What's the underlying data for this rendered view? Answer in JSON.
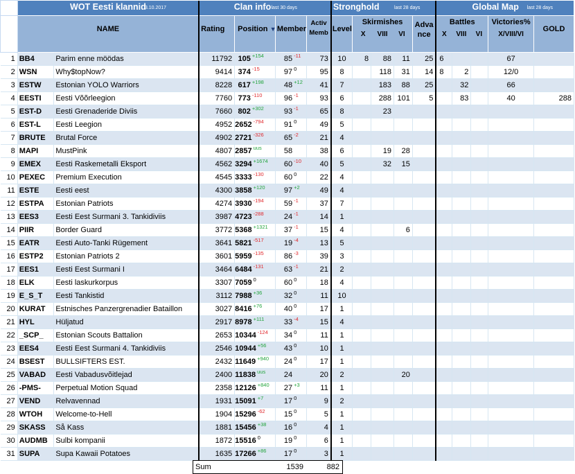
{
  "header": {
    "title": "WOT Eesti klannid",
    "date": "3.10.2017",
    "clan_info": "Clan info",
    "clan_info_note": "last 30 days",
    "stronghold": "Stronghold",
    "stronghold_note": "last 28 days",
    "global_map": "Global Map",
    "global_map_note": "last 28 days",
    "col_name": "NAME",
    "col_rating": "Rating",
    "col_position": "Position",
    "col_position_arrow": "▼",
    "col_members": "Members",
    "col_activ": "Activ",
    "col_activ2": "Memb",
    "col_level": "Level",
    "col_skirmishes": "Skirmishes",
    "col_sk_x": "X",
    "col_sk_viii": "VIII",
    "col_sk_vi": "VI",
    "col_advance": "Adva",
    "col_advance2": "nce",
    "col_battles": "Battles",
    "col_gm_x": "X",
    "col_gm_viii": "VIII",
    "col_gm_vi": "VI",
    "col_victories": "Victories%",
    "col_victories2": "X/VIII/VI",
    "col_gold": "GOLD"
  },
  "rows": [
    {
      "n": "1",
      "tag": "BB4",
      "name": "Parim enne möödas",
      "rating": "11792",
      "pos": "105",
      "pos_chg": "+154",
      "mem": "85",
      "mem_chg": "-11",
      "activ": "73",
      "level": "10",
      "skx": "8",
      "skviii": "88",
      "skvi": "11",
      "adv": "25",
      "gbx": "6",
      "gbviii": "",
      "gbvi": "",
      "vic": "67",
      "gold": ""
    },
    {
      "n": "2",
      "tag": "WSN",
      "name": "Why$topNow?",
      "rating": "9414",
      "pos": "374",
      "pos_chg": "-15",
      "mem": "97",
      "mem_chg": "0",
      "activ": "95",
      "level": "8",
      "skx": "",
      "skviii": "118",
      "skvi": "31",
      "adv": "14",
      "gbx": "8",
      "gbviii": "2",
      "gbvi": "",
      "vic": "12/0",
      "gold": ""
    },
    {
      "n": "3",
      "tag": "ESTW",
      "name": "Estonian YOLO Warriors",
      "rating": "8228",
      "pos": "617",
      "pos_chg": "+198",
      "mem": "48",
      "mem_chg": "+12",
      "activ": "41",
      "level": "7",
      "skx": "",
      "skviii": "183",
      "skvi": "88",
      "adv": "25",
      "gbx": "",
      "gbviii": "32",
      "gbvi": "",
      "vic": "66",
      "gold": ""
    },
    {
      "n": "4",
      "tag": "EESTI",
      "name": "Eesti Võõrleegion",
      "rating": "7760",
      "pos": "773",
      "pos_chg": "-110",
      "mem": "96",
      "mem_chg": "-1",
      "activ": "93",
      "level": "6",
      "skx": "",
      "skviii": "288",
      "skvi": "101",
      "adv": "5",
      "gbx": "",
      "gbviii": "83",
      "gbvi": "",
      "vic": "40",
      "gold": "288"
    },
    {
      "n": "5",
      "tag": "EST-D",
      "name": "Eesti Grenaderide Diviis",
      "rating": "7660",
      "pos": "802",
      "pos_chg": "+302",
      "mem": "93",
      "mem_chg": "-1",
      "activ": "65",
      "level": "8",
      "skx": "",
      "skviii": "23",
      "skvi": "",
      "adv": "",
      "gbx": "",
      "gbviii": "",
      "gbvi": "",
      "vic": "",
      "gold": ""
    },
    {
      "n": "6",
      "tag": "EST-L",
      "name": "Eesti Leegion",
      "rating": "4952",
      "pos": "2652",
      "pos_chg": "-794",
      "mem": "91",
      "mem_chg": "0",
      "activ": "49",
      "level": "5",
      "skx": "",
      "skviii": "",
      "skvi": "",
      "adv": "",
      "gbx": "",
      "gbviii": "",
      "gbvi": "",
      "vic": "",
      "gold": ""
    },
    {
      "n": "7",
      "tag": "BRUTE",
      "name": "Brutal Force",
      "rating": "4902",
      "pos": "2721",
      "pos_chg": "-326",
      "mem": "65",
      "mem_chg": "-2",
      "activ": "21",
      "level": "4",
      "skx": "",
      "skviii": "",
      "skvi": "",
      "adv": "",
      "gbx": "",
      "gbviii": "",
      "gbvi": "",
      "vic": "",
      "gold": ""
    },
    {
      "n": "8",
      "tag": "MAPI",
      "name": "MustPink",
      "rating": "4807",
      "pos": "2857",
      "pos_chg": "uus",
      "mem": "58",
      "mem_chg": "",
      "activ": "38",
      "level": "6",
      "skx": "",
      "skviii": "19",
      "skvi": "28",
      "adv": "",
      "gbx": "",
      "gbviii": "",
      "gbvi": "",
      "vic": "",
      "gold": ""
    },
    {
      "n": "9",
      "tag": "EMEX",
      "name": "Eesti Raskemetalli Eksport",
      "rating": "4562",
      "pos": "3294",
      "pos_chg": "+1674",
      "mem": "60",
      "mem_chg": "-10",
      "activ": "40",
      "level": "5",
      "skx": "",
      "skviii": "32",
      "skvi": "15",
      "adv": "",
      "gbx": "",
      "gbviii": "",
      "gbvi": "",
      "vic": "",
      "gold": ""
    },
    {
      "n": "10",
      "tag": "PEXEC",
      "name": "Premium Execution",
      "rating": "4545",
      "pos": "3333",
      "pos_chg": "-130",
      "mem": "60",
      "mem_chg": "0",
      "activ": "22",
      "level": "4",
      "skx": "",
      "skviii": "",
      "skvi": "",
      "adv": "",
      "gbx": "",
      "gbviii": "",
      "gbvi": "",
      "vic": "",
      "gold": ""
    },
    {
      "n": "11",
      "tag": "ESTE",
      "name": "Eesti eest",
      "rating": "4300",
      "pos": "3858",
      "pos_chg": "+120",
      "mem": "97",
      "mem_chg": "+2",
      "activ": "49",
      "level": "4",
      "skx": "",
      "skviii": "",
      "skvi": "",
      "adv": "",
      "gbx": "",
      "gbviii": "",
      "gbvi": "",
      "vic": "",
      "gold": ""
    },
    {
      "n": "12",
      "tag": "ESTPA",
      "name": "Estonian Patriots",
      "rating": "4274",
      "pos": "3930",
      "pos_chg": "-194",
      "mem": "59",
      "mem_chg": "-1",
      "activ": "37",
      "level": "7",
      "skx": "",
      "skviii": "",
      "skvi": "",
      "adv": "",
      "gbx": "",
      "gbviii": "",
      "gbvi": "",
      "vic": "",
      "gold": ""
    },
    {
      "n": "13",
      "tag": "EES3",
      "name": "Eesti Eest Surmani 3. Tankidiviis",
      "rating": "3987",
      "pos": "4723",
      "pos_chg": "-288",
      "mem": "24",
      "mem_chg": "-1",
      "activ": "14",
      "level": "1",
      "skx": "",
      "skviii": "",
      "skvi": "",
      "adv": "",
      "gbx": "",
      "gbviii": "",
      "gbvi": "",
      "vic": "",
      "gold": ""
    },
    {
      "n": "14",
      "tag": "PIIR",
      "name": "Border Guard",
      "rating": "3772",
      "pos": "5368",
      "pos_chg": "+1321",
      "mem": "37",
      "mem_chg": "-1",
      "activ": "15",
      "level": "4",
      "skx": "",
      "skviii": "",
      "skvi": "6",
      "adv": "",
      "gbx": "",
      "gbviii": "",
      "gbvi": "",
      "vic": "",
      "gold": ""
    },
    {
      "n": "15",
      "tag": "EATR",
      "name": "Eesti Auto-Tanki Rügement",
      "rating": "3641",
      "pos": "5821",
      "pos_chg": "-517",
      "mem": "19",
      "mem_chg": "-4",
      "activ": "13",
      "level": "5",
      "skx": "",
      "skviii": "",
      "skvi": "",
      "adv": "",
      "gbx": "",
      "gbviii": "",
      "gbvi": "",
      "vic": "",
      "gold": ""
    },
    {
      "n": "16",
      "tag": "ESTP2",
      "name": "Estonian Patriots 2",
      "rating": "3601",
      "pos": "5959",
      "pos_chg": "-135",
      "mem": "86",
      "mem_chg": "-3",
      "activ": "39",
      "level": "3",
      "skx": "",
      "skviii": "",
      "skvi": "",
      "adv": "",
      "gbx": "",
      "gbviii": "",
      "gbvi": "",
      "vic": "",
      "gold": ""
    },
    {
      "n": "17",
      "tag": "EES1",
      "name": "Eesti Eest Surmani I",
      "rating": "3464",
      "pos": "6484",
      "pos_chg": "-131",
      "mem": "63",
      "mem_chg": "-1",
      "activ": "21",
      "level": "2",
      "skx": "",
      "skviii": "",
      "skvi": "",
      "adv": "",
      "gbx": "",
      "gbviii": "",
      "gbvi": "",
      "vic": "",
      "gold": ""
    },
    {
      "n": "18",
      "tag": "ELK",
      "name": "Eesti laskurkorpus",
      "rating": "3307",
      "pos": "7059",
      "pos_chg": "0",
      "mem": "60",
      "mem_chg": "0",
      "activ": "18",
      "level": "4",
      "skx": "",
      "skviii": "",
      "skvi": "",
      "adv": "",
      "gbx": "",
      "gbviii": "",
      "gbvi": "",
      "vic": "",
      "gold": ""
    },
    {
      "n": "19",
      "tag": "E_S_T",
      "name": "Eesti Tankistid",
      "rating": "3112",
      "pos": "7988",
      "pos_chg": "+36",
      "mem": "32",
      "mem_chg": "0",
      "activ": "11",
      "level": "10",
      "skx": "",
      "skviii": "",
      "skvi": "",
      "adv": "",
      "gbx": "",
      "gbviii": "",
      "gbvi": "",
      "vic": "",
      "gold": ""
    },
    {
      "n": "20",
      "tag": "KURAT",
      "name": "Estnisches Panzergrenadier Bataillon",
      "rating": "3027",
      "pos": "8416",
      "pos_chg": "+76",
      "mem": "40",
      "mem_chg": "0",
      "activ": "17",
      "level": "1",
      "skx": "",
      "skviii": "",
      "skvi": "",
      "adv": "",
      "gbx": "",
      "gbviii": "",
      "gbvi": "",
      "vic": "",
      "gold": ""
    },
    {
      "n": "21",
      "tag": "HYL",
      "name": "Hüljatud",
      "rating": "2917",
      "pos": "8978",
      "pos_chg": "+111",
      "mem": "33",
      "mem_chg": "-4",
      "activ": "15",
      "level": "4",
      "skx": "",
      "skviii": "",
      "skvi": "",
      "adv": "",
      "gbx": "",
      "gbviii": "",
      "gbvi": "",
      "vic": "",
      "gold": ""
    },
    {
      "n": "22",
      "tag": "_SCP_",
      "name": "Estonian Scouts Battalion",
      "rating": "2653",
      "pos": "10344",
      "pos_chg": "-124",
      "mem": "34",
      "mem_chg": "0",
      "activ": "11",
      "level": "1",
      "skx": "",
      "skviii": "",
      "skvi": "",
      "adv": "",
      "gbx": "",
      "gbviii": "",
      "gbvi": "",
      "vic": "",
      "gold": ""
    },
    {
      "n": "23",
      "tag": "EES4",
      "name": "Eesti Eest Surmani 4. Tankidiviis",
      "rating": "2546",
      "pos": "10944",
      "pos_chg": "+56",
      "mem": "43",
      "mem_chg": "0",
      "activ": "10",
      "level": "1",
      "skx": "",
      "skviii": "",
      "skvi": "",
      "adv": "",
      "gbx": "",
      "gbviii": "",
      "gbvi": "",
      "vic": "",
      "gold": ""
    },
    {
      "n": "24",
      "tag": "BSEST",
      "name": "BULLSIFTERS EST.",
      "rating": "2432",
      "pos": "11649",
      "pos_chg": "+940",
      "mem": "24",
      "mem_chg": "0",
      "activ": "17",
      "level": "1",
      "skx": "",
      "skviii": "",
      "skvi": "",
      "adv": "",
      "gbx": "",
      "gbviii": "",
      "gbvi": "",
      "vic": "",
      "gold": ""
    },
    {
      "n": "25",
      "tag": "VABAD",
      "name": "Eesti Vabadusvõitlejad",
      "rating": "2400",
      "pos": "11838",
      "pos_chg": "uus",
      "mem": "24",
      "mem_chg": "",
      "activ": "20",
      "level": "2",
      "skx": "",
      "skviii": "",
      "skvi": "20",
      "adv": "",
      "gbx": "",
      "gbviii": "",
      "gbvi": "",
      "vic": "",
      "gold": ""
    },
    {
      "n": "26",
      "tag": "-PMS-",
      "name": "Perpetual Motion Squad",
      "rating": "2358",
      "pos": "12126",
      "pos_chg": "+840",
      "mem": "27",
      "mem_chg": "+3",
      "activ": "11",
      "level": "1",
      "skx": "",
      "skviii": "",
      "skvi": "",
      "adv": "",
      "gbx": "",
      "gbviii": "",
      "gbvi": "",
      "vic": "",
      "gold": ""
    },
    {
      "n": "27",
      "tag": "VEND",
      "name": "Relvavennad",
      "rating": "1931",
      "pos": "15091",
      "pos_chg": "+7",
      "mem": "17",
      "mem_chg": "0",
      "activ": "9",
      "level": "2",
      "skx": "",
      "skviii": "",
      "skvi": "",
      "adv": "",
      "gbx": "",
      "gbviii": "",
      "gbvi": "",
      "vic": "",
      "gold": ""
    },
    {
      "n": "28",
      "tag": "WTOH",
      "name": "Welcome-to-Hell",
      "rating": "1904",
      "pos": "15296",
      "pos_chg": "-62",
      "mem": "15",
      "mem_chg": "0",
      "activ": "5",
      "level": "1",
      "skx": "",
      "skviii": "",
      "skvi": "",
      "adv": "",
      "gbx": "",
      "gbviii": "",
      "gbvi": "",
      "vic": "",
      "gold": ""
    },
    {
      "n": "29",
      "tag": "SKASS",
      "name": "Så Kass",
      "rating": "1881",
      "pos": "15456",
      "pos_chg": "+38",
      "mem": "16",
      "mem_chg": "0",
      "activ": "4",
      "level": "1",
      "skx": "",
      "skviii": "",
      "skvi": "",
      "adv": "",
      "gbx": "",
      "gbviii": "",
      "gbvi": "",
      "vic": "",
      "gold": ""
    },
    {
      "n": "30",
      "tag": "AUDMB",
      "name": "Sulbi kompanii",
      "rating": "1872",
      "pos": "15516",
      "pos_chg": "0",
      "mem": "19",
      "mem_chg": "0",
      "activ": "6",
      "level": "1",
      "skx": "",
      "skviii": "",
      "skvi": "",
      "adv": "",
      "gbx": "",
      "gbviii": "",
      "gbvi": "",
      "vic": "",
      "gold": ""
    },
    {
      "n": "31",
      "tag": "SUPA",
      "name": "Supa Kawaii Potatoes",
      "rating": "1635",
      "pos": "17266",
      "pos_chg": "+86",
      "mem": "17",
      "mem_chg": "0",
      "activ": "3",
      "level": "1",
      "skx": "",
      "skviii": "",
      "skvi": "",
      "adv": "",
      "gbx": "",
      "gbviii": "",
      "gbvi": "",
      "vic": "",
      "gold": ""
    }
  ],
  "sum": {
    "label": "Sum",
    "members": "1539",
    "activ": "882"
  }
}
